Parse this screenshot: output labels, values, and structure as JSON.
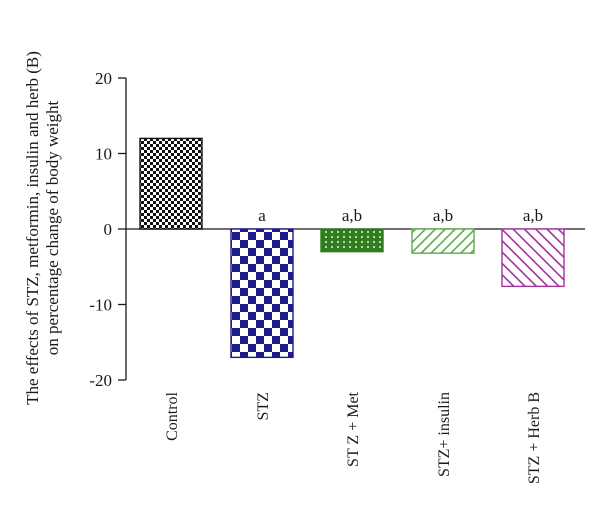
{
  "chart_data": {
    "type": "bar",
    "ylabel_line1": "The effects of STZ, metformin, insulin and herb (B)",
    "ylabel_line2": "on percentage change of body weight",
    "xlabel": "",
    "ylim": [
      -20,
      20
    ],
    "yticks": [
      20,
      10,
      0,
      -10,
      -20
    ],
    "grid": false,
    "categories": [
      "Control",
      "STZ",
      "ST Z + Met",
      "STZ+ insulin",
      "STZ + Herb B"
    ],
    "values": [
      12,
      -17,
      -3,
      -3.2,
      -7.6
    ],
    "annotations": [
      "",
      "a",
      "a,b",
      "a,b",
      "a,b"
    ],
    "colors": {
      "control": "#111111",
      "stz": "#1e1a8c",
      "met": "#2f7d1f",
      "insulin": "#5caa4c",
      "herb": "#a2339a",
      "axis": "#1a1a1a"
    },
    "patterns": [
      "checker-small",
      "checker-large",
      "dotted-grid",
      "diagonal-hatch",
      "diagonal-hatch-reverse"
    ]
  }
}
